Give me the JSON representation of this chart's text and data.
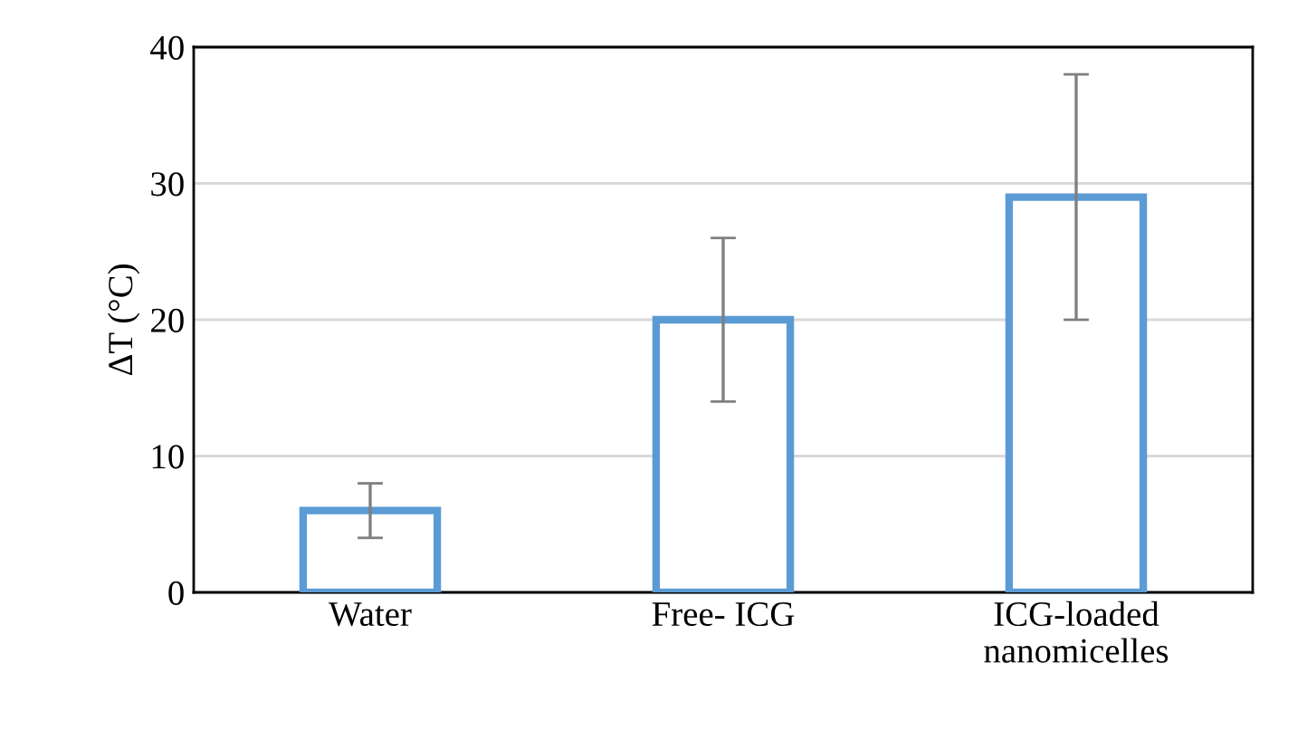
{
  "chart_data": {
    "type": "bar",
    "ylabel": "ΔT (°C)",
    "categories": [
      "Water",
      "Free- ICG",
      "ICG-loaded\nnanomicelles"
    ],
    "values": [
      6,
      20,
      29
    ],
    "errors": [
      2,
      6,
      9
    ],
    "color": "#5b9bd5",
    "ylim": [
      0,
      40
    ],
    "yticks": [
      0,
      10,
      20,
      30,
      40
    ],
    "grid": "y"
  }
}
